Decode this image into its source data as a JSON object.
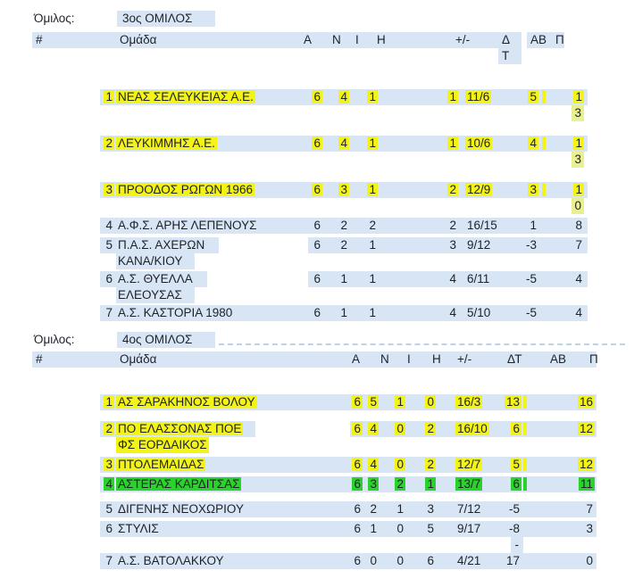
{
  "groups": [
    {
      "label": "Όμιλος:",
      "name": "3ος ΟΜΙΛΟΣ",
      "columns": {
        "num": "#",
        "team": "Ομάδα",
        "a": "Α",
        "n": "Ν",
        "i": "Ι",
        "h": "Η",
        "pm": "+/-",
        "dt": "Δ\nΤ",
        "ab": "ΑΒ",
        "p": "Π"
      },
      "rows": [
        {
          "num": "1",
          "team": "ΝΕΑΣ ΣΕΛΕΥΚΕΙΑΣ Α.Ε.",
          "a": "6",
          "n": "4",
          "i": "1",
          "h": "1",
          "pm": "11/6",
          "dt": "5",
          "ab": "",
          "p": "13",
          "p_wrap": true,
          "hl": "yellow"
        },
        {
          "num": "2",
          "team": "ΛΕΥΚΙΜΜΗΣ Α.Ε.",
          "a": "6",
          "n": "4",
          "i": "1",
          "h": "1",
          "pm": "10/6",
          "dt": "4",
          "ab": "",
          "p": "13",
          "p_wrap": true,
          "hl": "yellow"
        },
        {
          "num": "3",
          "team": "ΠΡΟΟΔΟΣ ΡΩΓΩΝ 1966",
          "a": "6",
          "n": "3",
          "i": "1",
          "h": "2",
          "pm": "12/9",
          "dt": "3",
          "ab": "",
          "p": "10",
          "p_wrap": true,
          "hl": "yellow"
        },
        {
          "num": "4",
          "team": "Α.Φ.Σ. ΑΡΗΣ ΛΕΠΕΝΟΥΣ",
          "a": "6",
          "n": "2",
          "i": "2",
          "h": "2",
          "pm": "16/15",
          "dt": "1",
          "ab": "",
          "p": "8",
          "hl": "none"
        },
        {
          "num": "5",
          "team": "Π.Α.Σ. ΑΧΕΡΩΝ",
          "team2": "ΚΑΝΑ/ΚΙΟΥ",
          "a": "6",
          "n": "2",
          "i": "1",
          "h": "3",
          "pm": "9/12",
          "dt": "-3",
          "ab": "",
          "p": "7",
          "hl": "none"
        },
        {
          "num": "6",
          "team": "Α.Σ. ΘΥΕΛΛΑ",
          "team2": "ΕΛΕΟΥΣΑΣ",
          "a": "6",
          "n": "1",
          "i": "1",
          "h": "4",
          "pm": "6/11",
          "dt": "-5",
          "ab": "",
          "p": "4",
          "hl": "none"
        },
        {
          "num": "7",
          "team": "Α.Σ. ΚΑΣΤΟΡΙΑ 1980",
          "a": "6",
          "n": "1",
          "i": "1",
          "h": "4",
          "pm": "5/10",
          "dt": "-5",
          "ab": "",
          "p": "4",
          "hl": "none"
        }
      ]
    },
    {
      "label": "Όμιλος:",
      "name": "4ος ΟΜΙΛΟΣ",
      "columns": {
        "num": "#",
        "team": "Ομάδα",
        "a": "Α",
        "n": "Ν",
        "i": "Ι",
        "h": "Η",
        "pm": "+/-",
        "dt": "ΔΤ",
        "ab": "ΑΒ",
        "p": "Π"
      },
      "rows": [
        {
          "num": "1",
          "team": "ΑΣ ΣΑΡΑΚΗΝΟΣ ΒΟΛΟΥ",
          "a": "6",
          "n": "5",
          "i": "1",
          "h": "0",
          "pm": "16/3",
          "dt": "13",
          "ab": "",
          "p": "16",
          "hl": "yellow"
        },
        {
          "num": "2",
          "team": "ΠΟ ΕΛΑΣΣΟΝΑΣ ΠΟΕ",
          "team2": "ΦΣ ΕΟΡΔΑΙΚΟΣ",
          "a": "6",
          "n": "4",
          "i": "0",
          "h": "2",
          "pm": "16/10",
          "dt": "6",
          "ab": "",
          "p": "12",
          "hl": "yellow"
        },
        {
          "num": "3",
          "team": "ΠΤΟΛΕΜΑΙΔΑΣ",
          "a": "6",
          "n": "4",
          "i": "0",
          "h": "2",
          "pm": "12/7",
          "dt": "5",
          "ab": "",
          "p": "12",
          "hl": "yellow"
        },
        {
          "num": "4",
          "team": "ΑΣΤΕΡΑΣ ΚΑΡΔΙΤΣΑΣ",
          "a": "6",
          "n": "3",
          "i": "2",
          "h": "1",
          "pm": "13/7",
          "dt": "6",
          "ab": "",
          "p": "11",
          "hl": "green"
        },
        {
          "num": "5",
          "team": "ΔΙΓΕΝΗΣ ΝΕΟΧΩΡΙΟΥ",
          "a": "6",
          "n": "2",
          "i": "1",
          "h": "3",
          "pm": "7/12",
          "dt": "-5",
          "ab": "",
          "p": "7",
          "hl": "none"
        },
        {
          "num": "6",
          "team": "ΣΤΥΛΙΣ",
          "a": "6",
          "n": "1",
          "i": "0",
          "h": "5",
          "pm": "9/17",
          "dt": "-8",
          "ab": "",
          "p": "3",
          "hl": "none"
        },
        {
          "num": "7",
          "team": "Α.Σ. ΒΑΤΟΛΑΚΚΟΥ",
          "a": "6",
          "n": "0",
          "i": "0",
          "h": "6",
          "pm": "4/21",
          "dt": "-17",
          "dt_wrap": true,
          "ab": "",
          "p": "0",
          "hl": "none"
        }
      ]
    }
  ],
  "colors": {
    "row_band": "#d8e5f4",
    "match_highlight": "#f3f316",
    "match_highlight_pale": "#e9f08f",
    "current_match_highlight": "#2ad32a",
    "text": "#1d2129"
  }
}
